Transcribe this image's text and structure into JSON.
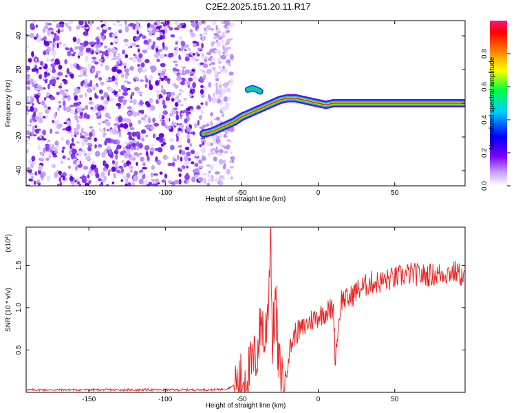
{
  "title": "C2E2.2025.151.20.11.R17",
  "chart_data": [
    {
      "type": "heatmap",
      "xlabel": "Height of straight line (km)",
      "ylabel": "Frequency (Hz)",
      "xlim": [
        -191,
        96
      ],
      "ylim": [
        -49,
        49
      ],
      "xticks": [
        -150,
        -100,
        -50,
        0,
        50
      ],
      "yticks": [
        -40,
        -20,
        0,
        20,
        40
      ],
      "grid": false,
      "colorbar": {
        "label": "Normalized spectral amplitude",
        "range": [
          0,
          1
        ],
        "ticks": [
          "0.0",
          "0.2",
          "0.4",
          "0.6",
          "0.8"
        ],
        "colormap": [
          "#ffffff",
          "#8a2be2",
          "#0000ff",
          "#00ffff",
          "#00ff00",
          "#ffff00",
          "#ff8000",
          "#ff0000",
          "#ff1493"
        ]
      },
      "noise_region_x": [
        -191,
        -60
      ],
      "ridge": {
        "x": [
          -75,
          -70,
          -65,
          -60,
          -55,
          -50,
          -45,
          -40,
          -35,
          -30,
          -25,
          -20,
          -15,
          -10,
          -5,
          0,
          5,
          10,
          15,
          30,
          50,
          70,
          96
        ],
        "y": [
          -18,
          -17,
          -15,
          -13,
          -11,
          -8,
          -6,
          -4,
          -2,
          0,
          2,
          3,
          3,
          2,
          1,
          0,
          -1,
          0,
          0,
          0,
          0,
          0,
          0
        ]
      },
      "spur": {
        "x": [
          -46,
          -43,
          -40,
          -38
        ],
        "y": [
          8,
          9,
          8,
          7
        ]
      }
    },
    {
      "type": "line",
      "xlabel": "Height of straight line (km)",
      "ylabel": "SNR (10 * v/v)",
      "y_multiplier": "(x10^4)",
      "xlim": [
        -191,
        96
      ],
      "ylim": [
        0,
        1.95
      ],
      "xticks": [
        -150,
        -100,
        -50,
        0,
        50
      ],
      "yticks": [
        "0.5",
        "1.0",
        "1.5"
      ],
      "grid": false,
      "color": "#ee2222",
      "series": [
        {
          "x": [
            -191,
            -170,
            -150,
            -130,
            -110,
            -90,
            -70,
            -60,
            -55,
            -50,
            -45,
            -40,
            -37,
            -35,
            -33,
            -31,
            -30,
            -28,
            -26,
            -24,
            -22,
            -20,
            -18,
            -15,
            -10,
            -5,
            0,
            5,
            10,
            11,
            15,
            20,
            25,
            30,
            35,
            40,
            50,
            60,
            70,
            80,
            90,
            96
          ],
          "values": [
            0.03,
            0.03,
            0.03,
            0.03,
            0.03,
            0.03,
            0.03,
            0.04,
            0.08,
            0.15,
            0.25,
            0.45,
            0.9,
            0.55,
            1.0,
            1.93,
            0.5,
            1.15,
            0.3,
            0.2,
            0.05,
            0.4,
            0.55,
            0.7,
            0.75,
            0.85,
            0.9,
            0.95,
            1.0,
            0.4,
            1.1,
            1.1,
            1.2,
            1.25,
            1.3,
            1.3,
            1.35,
            1.4,
            1.38,
            1.4,
            1.42,
            1.35
          ]
        }
      ]
    }
  ]
}
